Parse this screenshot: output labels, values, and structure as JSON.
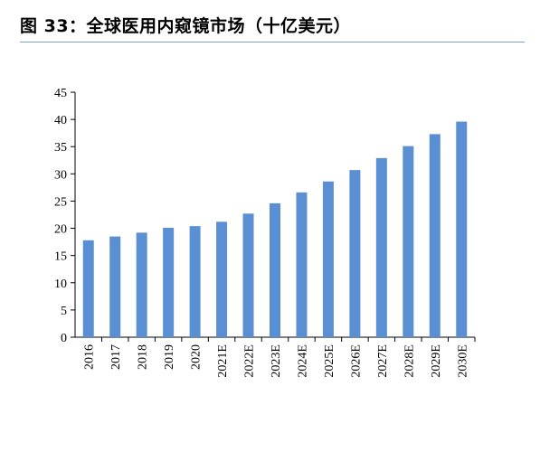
{
  "figure": {
    "title": "图 33：全球医用内窥镜市场（十亿美元）"
  },
  "chart_data": {
    "type": "bar",
    "title": "图 33：全球医用内窥镜市场（十亿美元）",
    "categories": [
      "2016",
      "2017",
      "2018",
      "2019",
      "2020",
      "2021E",
      "2022E",
      "2023E",
      "2024E",
      "2025E",
      "2026E",
      "2027E",
      "2028E",
      "2029E",
      "2030E"
    ],
    "values": [
      17.8,
      18.5,
      19.2,
      20.1,
      20.4,
      21.2,
      22.7,
      24.6,
      26.6,
      28.6,
      30.7,
      32.9,
      35.1,
      37.3,
      39.6
    ],
    "ylim": [
      0,
      45
    ],
    "yticks": [
      "0",
      "5",
      "10",
      "15",
      "20",
      "25",
      "30",
      "35",
      "40",
      "45"
    ],
    "xlabel": "",
    "ylabel": "",
    "grid": false,
    "legend": "none",
    "bar_color": "#5b8fd4"
  }
}
